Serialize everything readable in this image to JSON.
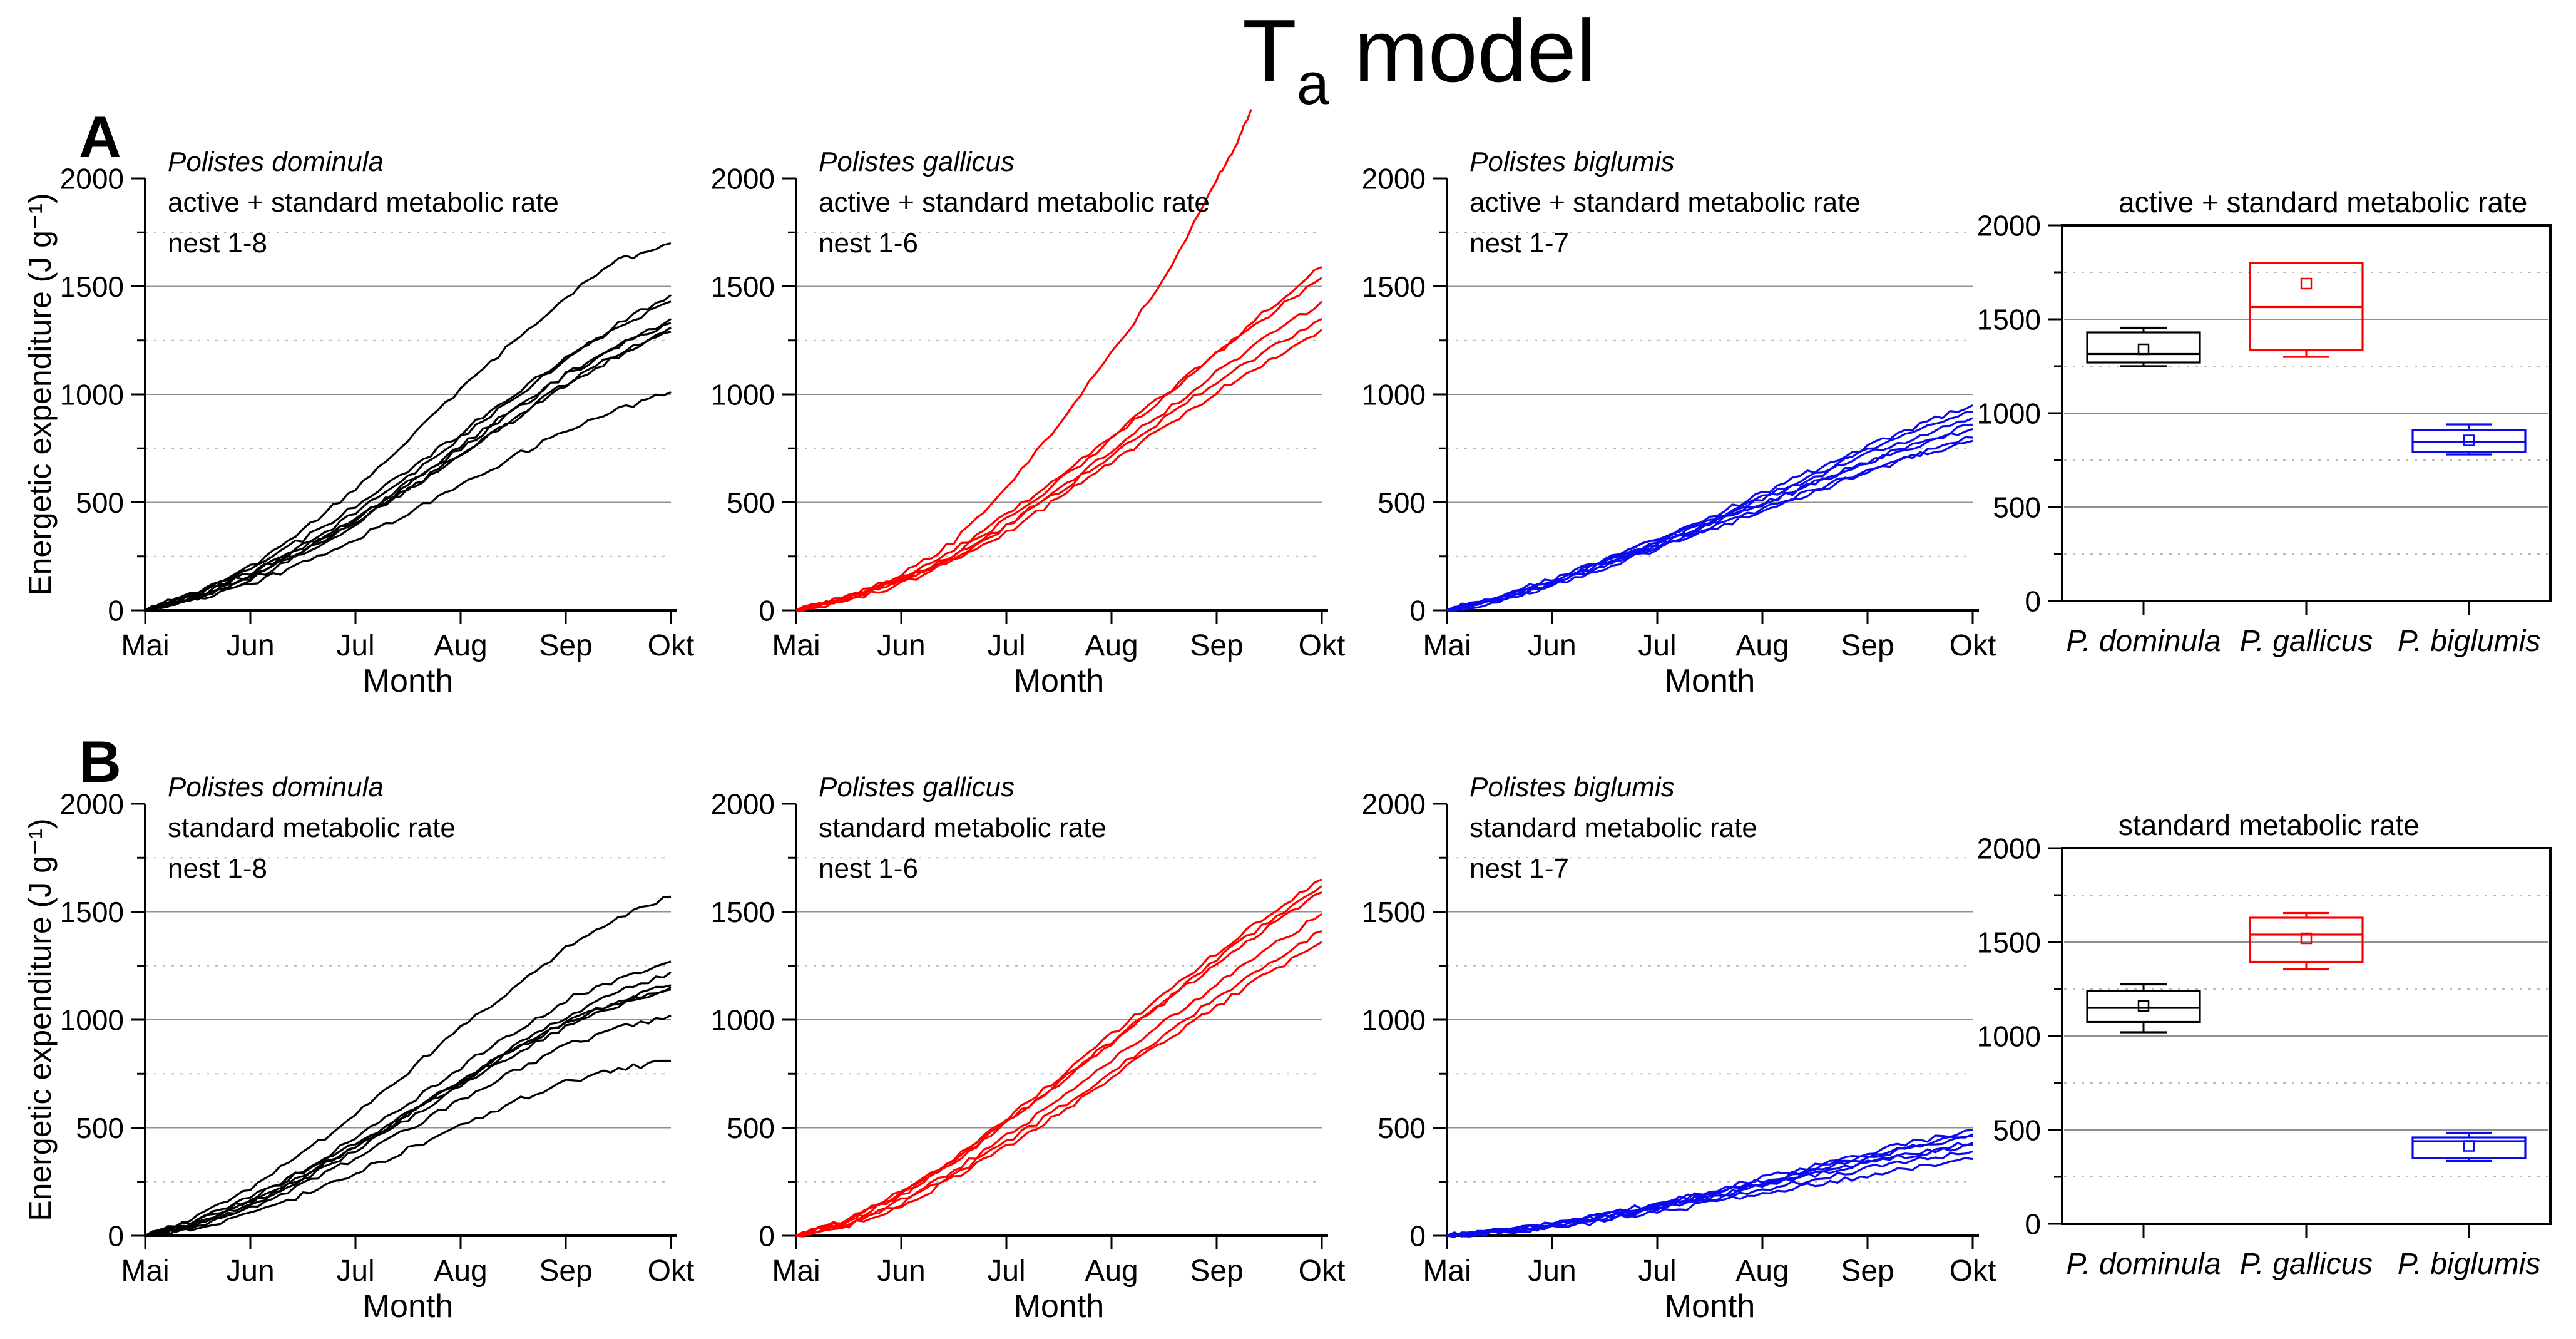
{
  "title": {
    "main": "T",
    "sub": "a",
    "rest": " model"
  },
  "panels": [
    {
      "label": "A"
    },
    {
      "label": "B"
    }
  ],
  "labels": {
    "ylabel": "Energetic expenditure (J g⁻¹)",
    "xlabel": "Month"
  },
  "axes": {
    "months": [
      "Mai",
      "Jun",
      "Jul",
      "Aug",
      "Sep",
      "Okt"
    ],
    "yticks": [
      0,
      500,
      1000,
      1500,
      2000
    ],
    "ymax": 2000,
    "major_gridlines": [
      500,
      1000,
      1500
    ],
    "minor_gridlines": [
      250,
      750,
      1250,
      1750
    ]
  },
  "colors": {
    "dominula": "#000000",
    "gallicus": "#ff0000",
    "biglumis": "#0b0bee",
    "grid_major": "#909090",
    "grid_minor": "#bababa"
  },
  "chart_data": [
    {
      "type": "line",
      "id": "A-dominula",
      "species": "Polistes dominula",
      "rate_label": "active + standard metabolic rate",
      "nest_label": "nest 1-8",
      "color": "#000000",
      "xlabel": "Month",
      "ylabel": "Energetic expenditure (J g⁻¹)",
      "x": [
        0,
        0.5,
        1,
        1.5,
        2,
        2.5,
        3,
        3.5,
        4,
        4.5,
        5
      ],
      "ylim": [
        0,
        2000
      ],
      "series": [
        {
          "name": "1",
          "y": [
            0,
            80,
            200,
            370,
            560,
            790,
            1020,
            1240,
            1450,
            1620,
            1700
          ]
        },
        {
          "name": "2",
          "y": [
            0,
            70,
            170,
            300,
            450,
            620,
            800,
            980,
            1160,
            1330,
            1460
          ]
        },
        {
          "name": "3",
          "y": [
            0,
            90,
            200,
            330,
            480,
            650,
            820,
            1000,
            1170,
            1310,
            1430
          ]
        },
        {
          "name": "4",
          "y": [
            0,
            60,
            150,
            280,
            420,
            580,
            750,
            920,
            1090,
            1230,
            1350
          ]
        },
        {
          "name": "5",
          "y": [
            0,
            75,
            170,
            290,
            430,
            590,
            760,
            930,
            1090,
            1220,
            1330
          ]
        },
        {
          "name": "6",
          "y": [
            0,
            55,
            140,
            260,
            400,
            560,
            720,
            890,
            1050,
            1190,
            1310
          ]
        },
        {
          "name": "7",
          "y": [
            0,
            65,
            155,
            270,
            410,
            560,
            720,
            880,
            1040,
            1180,
            1290
          ]
        },
        {
          "name": "8",
          "y": [
            0,
            50,
            120,
            220,
            330,
            450,
            580,
            710,
            830,
            930,
            1010
          ]
        }
      ]
    },
    {
      "type": "line",
      "id": "A-gallicus",
      "species": "Polistes gallicus",
      "rate_label": "active + standard metabolic rate",
      "nest_label": "nest 1-6",
      "color": "#ff0000",
      "xlabel": "Month",
      "ylabel": "Energetic expenditure (J g⁻¹)",
      "x": [
        0,
        0.5,
        1,
        1.5,
        2,
        2.5,
        3,
        3.5,
        4,
        4.5,
        5
      ],
      "ylim": [
        0,
        2000
      ],
      "series": [
        {
          "name": "1",
          "x": [
            0,
            0.5,
            1,
            1.5,
            2,
            2.5,
            3,
            3.5,
            4,
            4.2,
            4.33
          ],
          "y": [
            0,
            60,
            160,
            320,
            560,
            860,
            1190,
            1530,
            1990,
            2170,
            2320
          ]
        },
        {
          "name": "2",
          "y": [
            0,
            55,
            140,
            260,
            420,
            600,
            790,
            990,
            1190,
            1400,
            1590
          ]
        },
        {
          "name": "3",
          "y": [
            0,
            65,
            155,
            280,
            440,
            620,
            810,
            1000,
            1190,
            1370,
            1540
          ]
        },
        {
          "name": "4",
          "y": [
            0,
            50,
            130,
            240,
            390,
            560,
            740,
            920,
            1100,
            1270,
            1430
          ]
        },
        {
          "name": "5",
          "y": [
            0,
            60,
            140,
            250,
            390,
            550,
            720,
            890,
            1060,
            1210,
            1350
          ]
        },
        {
          "name": "6",
          "y": [
            0,
            45,
            120,
            230,
            360,
            520,
            680,
            850,
            1010,
            1160,
            1300
          ]
        }
      ]
    },
    {
      "type": "line",
      "id": "A-biglumis",
      "species": "Polistes biglumis",
      "rate_label": "active + standard metabolic rate",
      "nest_label": "nest 1-7",
      "color": "#0b0bee",
      "xlabel": "Month",
      "ylabel": "Energetic expenditure (J g⁻¹)",
      "x": [
        0,
        0.5,
        1,
        1.5,
        2,
        2.5,
        3,
        3.5,
        4,
        4.5,
        5
      ],
      "ylim": [
        0,
        2000
      ],
      "series": [
        {
          "name": "1",
          "y": [
            0,
            60,
            140,
            230,
            330,
            430,
            540,
            650,
            760,
            860,
            950
          ]
        },
        {
          "name": "2",
          "y": [
            0,
            55,
            130,
            220,
            315,
            415,
            520,
            630,
            740,
            835,
            920
          ]
        },
        {
          "name": "3",
          "y": [
            0,
            65,
            145,
            235,
            325,
            420,
            520,
            620,
            720,
            810,
            890
          ]
        },
        {
          "name": "4",
          "y": [
            0,
            50,
            120,
            210,
            300,
            395,
            490,
            590,
            690,
            780,
            860
          ]
        },
        {
          "name": "5",
          "y": [
            0,
            60,
            135,
            220,
            310,
            400,
            495,
            590,
            685,
            765,
            840
          ]
        },
        {
          "name": "6",
          "y": [
            0,
            45,
            115,
            200,
            285,
            370,
            460,
            550,
            640,
            725,
            800
          ]
        },
        {
          "name": "7",
          "y": [
            0,
            55,
            125,
            210,
            295,
            385,
            470,
            560,
            650,
            720,
            785
          ]
        }
      ]
    },
    {
      "type": "box",
      "id": "A-box",
      "title": "active + standard metabolic rate",
      "ylim": [
        0,
        2000
      ],
      "groups": [
        {
          "label": "P. dominula",
          "color": "#000000",
          "whisker_low": 1250,
          "q1": 1270,
          "median": 1315,
          "q3": 1430,
          "whisker_high": 1455,
          "mean": 1340
        },
        {
          "label": "P. gallicus",
          "color": "#ff0000",
          "whisker_low": 1300,
          "q1": 1335,
          "median": 1565,
          "q3": 1800,
          "whisker_high": 1800,
          "mean": 1690
        },
        {
          "label": "P. biglumis",
          "color": "#0b0bee",
          "whisker_low": 780,
          "q1": 792,
          "median": 848,
          "q3": 910,
          "whisker_high": 940,
          "mean": 855
        }
      ]
    },
    {
      "type": "line",
      "id": "B-dominula",
      "species": "Polistes dominula",
      "rate_label": "standard metabolic rate",
      "nest_label": "nest 1-8",
      "color": "#000000",
      "xlabel": "Month",
      "ylabel": "Energetic expenditure (J g⁻¹)",
      "x": [
        0,
        0.5,
        1,
        1.5,
        2,
        2.5,
        3,
        3.5,
        4,
        4.5,
        5
      ],
      "ylim": [
        0,
        2000
      ],
      "series": [
        {
          "name": "1",
          "y": [
            0,
            90,
            220,
            380,
            560,
            760,
            960,
            1150,
            1330,
            1470,
            1570
          ]
        },
        {
          "name": "2",
          "y": [
            0,
            70,
            170,
            300,
            450,
            610,
            780,
            940,
            1090,
            1190,
            1270
          ]
        },
        {
          "name": "3",
          "y": [
            0,
            60,
            150,
            270,
            410,
            560,
            720,
            870,
            1010,
            1130,
            1220
          ]
        },
        {
          "name": "4",
          "y": [
            0,
            65,
            160,
            280,
            410,
            560,
            710,
            860,
            990,
            1090,
            1160
          ]
        },
        {
          "name": "5",
          "y": [
            0,
            75,
            175,
            295,
            425,
            570,
            720,
            860,
            990,
            1080,
            1150
          ]
        },
        {
          "name": "6",
          "y": [
            0,
            55,
            140,
            260,
            390,
            540,
            690,
            840,
            970,
            1070,
            1140
          ]
        },
        {
          "name": "7",
          "y": [
            0,
            50,
            130,
            240,
            360,
            490,
            630,
            760,
            880,
            960,
            1020
          ]
        },
        {
          "name": "8",
          "y": [
            0,
            40,
            100,
            190,
            290,
            400,
            510,
            620,
            710,
            770,
            810
          ]
        }
      ]
    },
    {
      "type": "line",
      "id": "B-gallicus",
      "species": "Polistes gallicus",
      "rate_label": "standard metabolic rate",
      "nest_label": "nest 1-6",
      "color": "#ff0000",
      "xlabel": "Month",
      "ylabel": "Energetic expenditure (J g⁻¹)",
      "x": [
        0,
        0.5,
        1,
        1.5,
        2,
        2.5,
        3,
        3.5,
        4,
        4.5,
        5
      ],
      "ylim": [
        0,
        2000
      ],
      "series": [
        {
          "name": "1",
          "y": [
            0,
            80,
            200,
            360,
            540,
            730,
            930,
            1120,
            1310,
            1490,
            1650
          ]
        },
        {
          "name": "2",
          "y": [
            0,
            70,
            185,
            340,
            520,
            710,
            900,
            1090,
            1280,
            1460,
            1620
          ]
        },
        {
          "name": "3",
          "y": [
            0,
            75,
            190,
            345,
            525,
            705,
            890,
            1080,
            1260,
            1430,
            1590
          ]
        },
        {
          "name": "4",
          "y": [
            0,
            60,
            160,
            300,
            460,
            630,
            810,
            990,
            1160,
            1330,
            1490
          ]
        },
        {
          "name": "5",
          "y": [
            0,
            55,
            150,
            280,
            430,
            590,
            760,
            930,
            1100,
            1260,
            1410
          ]
        },
        {
          "name": "6",
          "y": [
            0,
            50,
            140,
            265,
            410,
            565,
            730,
            900,
            1060,
            1220,
            1360
          ]
        }
      ]
    },
    {
      "type": "line",
      "id": "B-biglumis",
      "species": "Polistes biglumis",
      "rate_label": "standard metabolic rate",
      "nest_label": "nest 1-7",
      "color": "#0b0bee",
      "xlabel": "Month",
      "ylabel": "Energetic expenditure (J g⁻¹)",
      "x": [
        0,
        0.5,
        1,
        1.5,
        2,
        2.5,
        3,
        3.5,
        4,
        4.5,
        5
      ],
      "ylim": [
        0,
        2000
      ],
      "series": [
        {
          "name": "1",
          "y": [
            0,
            20,
            55,
            100,
            150,
            205,
            265,
            325,
            385,
            440,
            490
          ]
        },
        {
          "name": "2",
          "y": [
            0,
            18,
            50,
            92,
            140,
            192,
            250,
            308,
            365,
            420,
            470
          ]
        },
        {
          "name": "3",
          "y": [
            0,
            22,
            58,
            100,
            148,
            200,
            255,
            310,
            365,
            415,
            460
          ]
        },
        {
          "name": "4",
          "y": [
            0,
            15,
            45,
            85,
            130,
            180,
            232,
            285,
            335,
            385,
            430
          ]
        },
        {
          "name": "5",
          "y": [
            0,
            18,
            48,
            88,
            133,
            182,
            235,
            288,
            340,
            382,
            420
          ]
        },
        {
          "name": "6",
          "y": [
            0,
            14,
            40,
            78,
            120,
            165,
            213,
            262,
            310,
            352,
            390
          ]
        },
        {
          "name": "7",
          "y": [
            0,
            12,
            36,
            70,
            108,
            150,
            193,
            238,
            280,
            320,
            355
          ]
        }
      ]
    },
    {
      "type": "box",
      "id": "B-box",
      "title": "standard metabolic rate",
      "ylim": [
        0,
        2000
      ],
      "groups": [
        {
          "label": "P. dominula",
          "color": "#000000",
          "whisker_low": 1020,
          "q1": 1075,
          "median": 1150,
          "q3": 1240,
          "whisker_high": 1275,
          "mean": 1160
        },
        {
          "label": "P. gallicus",
          "color": "#ff0000",
          "whisker_low": 1355,
          "q1": 1395,
          "median": 1540,
          "q3": 1630,
          "whisker_high": 1655,
          "mean": 1520
        },
        {
          "label": "P. biglumis",
          "color": "#0b0bee",
          "whisker_low": 335,
          "q1": 350,
          "median": 440,
          "q3": 460,
          "whisker_high": 485,
          "mean": 415
        }
      ]
    }
  ]
}
